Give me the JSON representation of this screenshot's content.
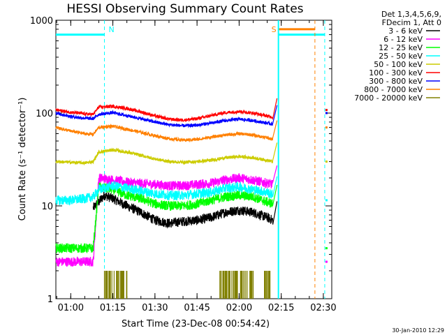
{
  "chart_data": {
    "type": "line",
    "title": "HESSI Observing Summary Count Rates",
    "xlabel": "Start Time (23-Dec-08 00:54:42)",
    "ylabel": "Count Rate (s⁻¹ detector⁻¹)",
    "y_scale": "log",
    "ylim": [
      1,
      1000
    ],
    "y_ticks": [
      {
        "value": 1,
        "label": "1"
      },
      {
        "value": 10,
        "label": "10"
      },
      {
        "value": 100,
        "label": "100"
      },
      {
        "value": 1000,
        "label": "1000"
      }
    ],
    "xlim": [
      "00:54:42",
      "02:33:00"
    ],
    "x_ticks": [
      "01:00",
      "01:15",
      "01:30",
      "01:45",
      "02:00",
      "02:15",
      "02:30"
    ],
    "legend": {
      "placement": "outside-right",
      "header": [
        "Det 1,3,4,5,6,9,",
        "FDecim 1, Att 0"
      ]
    },
    "flag_bars": [
      {
        "label": "",
        "color": "#00ffff",
        "start": "00:54:42",
        "end": "01:12:00",
        "y": 700
      },
      {
        "label": "N",
        "color": "#00ffff",
        "marker_at": "01:12:00"
      },
      {
        "label": "S",
        "color": "#ff8000",
        "marker_at": "02:14:00"
      },
      {
        "label": "",
        "color": "#ff8000",
        "start": "02:14:00",
        "end": "02:27:00",
        "y": 800
      },
      {
        "label": "",
        "color": "#00ffff",
        "start": "02:14:00",
        "end": "02:30:30",
        "y": 700
      }
    ],
    "series": [
      {
        "name": "3 - 6 keV",
        "color": "#000000",
        "times": [
          "01:08",
          "01:10",
          "01:12",
          "01:15",
          "01:20",
          "01:25",
          "01:30",
          "01:35",
          "01:40",
          "01:45",
          "01:50",
          "01:55",
          "02:00",
          "02:05",
          "02:10",
          "02:12"
        ],
        "values": [
          9.5,
          11,
          13,
          12,
          10,
          8.5,
          7,
          6.5,
          6.8,
          7,
          7.5,
          8.5,
          9,
          8.5,
          7.5,
          7
        ]
      },
      {
        "name": "6 - 12 keV",
        "color": "#ff00ff",
        "times": [
          "00:54:42",
          "01:00",
          "01:05",
          "01:08",
          "01:10",
          "01:15",
          "01:20",
          "01:25",
          "01:30",
          "01:35",
          "01:40",
          "01:45",
          "01:50",
          "01:55",
          "02:00",
          "02:05",
          "02:10",
          "02:12"
        ],
        "values": [
          2.5,
          2.5,
          2.5,
          2.5,
          20,
          19,
          18,
          17.5,
          17,
          16.5,
          16.5,
          17,
          17.5,
          19,
          20,
          19,
          17.5,
          17
        ]
      },
      {
        "name": "12 - 25 keV",
        "color": "#00ff00",
        "times": [
          "00:54:42",
          "01:00",
          "01:05",
          "01:08",
          "01:10",
          "01:15",
          "01:20",
          "01:25",
          "01:30",
          "01:35",
          "01:40",
          "01:45",
          "01:50",
          "01:55",
          "02:00",
          "02:05",
          "02:10",
          "02:12"
        ],
        "values": [
          3.5,
          3.5,
          3.5,
          3.5,
          16,
          15,
          13,
          12,
          10.5,
          10,
          10,
          10.5,
          11.5,
          12.5,
          13,
          12.5,
          11,
          10.5
        ]
      },
      {
        "name": "25 - 50 keV",
        "color": "#00ffff",
        "times": [
          "00:54:42",
          "01:00",
          "01:05",
          "01:08",
          "01:10",
          "01:15",
          "01:20",
          "01:25",
          "01:30",
          "01:35",
          "01:40",
          "01:45",
          "01:50",
          "01:55",
          "02:00",
          "02:05",
          "02:10",
          "02:12"
        ],
        "values": [
          11.5,
          11.5,
          12,
          12.5,
          15,
          16.5,
          15.5,
          14.5,
          13.5,
          13,
          13,
          13.5,
          14,
          15.5,
          16,
          15,
          14,
          13
        ]
      },
      {
        "name": "50 - 100 keV",
        "color": "#cccc00",
        "times": [
          "00:54:42",
          "01:00",
          "01:05",
          "01:08",
          "01:10",
          "01:15",
          "01:20",
          "01:25",
          "01:30",
          "01:35",
          "01:40",
          "01:45",
          "01:50",
          "01:55",
          "02:00",
          "02:05",
          "02:10",
          "02:12"
        ],
        "values": [
          30,
          29.5,
          29,
          30,
          38,
          40,
          38,
          35,
          32,
          30,
          29.5,
          30,
          31,
          33,
          34,
          33,
          31,
          30
        ]
      },
      {
        "name": "100 - 300 keV",
        "color": "#ff0000",
        "times": [
          "00:54:42",
          "01:00",
          "01:05",
          "01:08",
          "01:10",
          "01:15",
          "01:20",
          "01:25",
          "01:30",
          "01:35",
          "01:40",
          "01:45",
          "01:50",
          "01:55",
          "02:00",
          "02:05",
          "02:10",
          "02:12"
        ],
        "values": [
          108,
          102,
          98,
          97,
          116,
          118,
          112,
          103,
          93,
          86,
          84,
          87,
          94,
          101,
          104,
          100,
          93,
          90
        ]
      },
      {
        "name": "300 - 800 keV",
        "color": "#0000ff",
        "times": [
          "00:54:42",
          "01:00",
          "01:05",
          "01:08",
          "01:10",
          "01:15",
          "01:20",
          "01:25",
          "01:30",
          "01:35",
          "01:40",
          "01:45",
          "01:50",
          "01:55",
          "02:00",
          "02:05",
          "02:10",
          "02:12"
        ],
        "values": [
          100,
          92,
          88,
          87,
          97,
          101,
          94,
          87,
          80,
          75,
          73,
          74,
          78,
          83,
          86,
          83,
          78,
          76
        ]
      },
      {
        "name": "800 - 7000 keV",
        "color": "#ff8000",
        "times": [
          "00:54:42",
          "01:00",
          "01:05",
          "01:08",
          "01:10",
          "01:15",
          "01:20",
          "01:25",
          "01:30",
          "01:35",
          "01:40",
          "01:45",
          "01:50",
          "01:55",
          "02:00",
          "02:05",
          "02:10",
          "02:12"
        ],
        "values": [
          70,
          64,
          60,
          59,
          70,
          72,
          67,
          62,
          57,
          53,
          51,
          52,
          55,
          58,
          60,
          58,
          54,
          52
        ]
      },
      {
        "name": "7000 - 20000 keV",
        "color": "#808000",
        "times": [
          "01:12",
          "01:14",
          "01:16",
          "01:18",
          "01:20",
          "01:53",
          "01:55",
          "01:57",
          "01:59",
          "02:01",
          "02:03",
          "02:05",
          "02:10"
        ],
        "values": [
          2,
          1,
          2,
          1,
          2,
          2,
          1,
          2,
          1,
          2,
          1,
          2,
          2
        ]
      }
    ],
    "footer_timestamp": "30-Jan-2010 12:29"
  }
}
